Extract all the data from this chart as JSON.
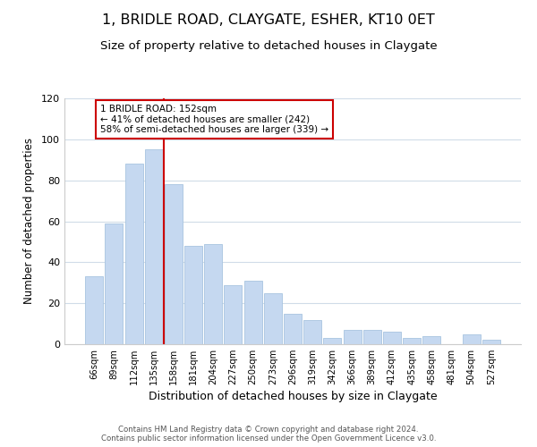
{
  "title": "1, BRIDLE ROAD, CLAYGATE, ESHER, KT10 0ET",
  "subtitle": "Size of property relative to detached houses in Claygate",
  "xlabel": "Distribution of detached houses by size in Claygate",
  "ylabel": "Number of detached properties",
  "categories": [
    "66sqm",
    "89sqm",
    "112sqm",
    "135sqm",
    "158sqm",
    "181sqm",
    "204sqm",
    "227sqm",
    "250sqm",
    "273sqm",
    "296sqm",
    "319sqm",
    "342sqm",
    "366sqm",
    "389sqm",
    "412sqm",
    "435sqm",
    "458sqm",
    "481sqm",
    "504sqm",
    "527sqm"
  ],
  "values": [
    33,
    59,
    88,
    95,
    78,
    48,
    49,
    29,
    31,
    25,
    15,
    12,
    3,
    7,
    7,
    6,
    3,
    4,
    0,
    5,
    2
  ],
  "bar_color": "#c5d8f0",
  "bar_edge_color": "#a8c4e0",
  "marker_label": "1 BRIDLE ROAD: 152sqm",
  "marker_line_color": "#cc0000",
  "annotation_line1": "← 41% of detached houses are smaller (242)",
  "annotation_line2": "58% of semi-detached houses are larger (339) →",
  "annotation_box_edge_color": "#cc0000",
  "ylim": [
    0,
    120
  ],
  "yticks": [
    0,
    20,
    40,
    60,
    80,
    100,
    120
  ],
  "footer_line1": "Contains HM Land Registry data © Crown copyright and database right 2024.",
  "footer_line2": "Contains public sector information licensed under the Open Government Licence v3.0.",
  "title_fontsize": 11.5,
  "subtitle_fontsize": 9.5,
  "xlabel_fontsize": 9,
  "ylabel_fontsize": 8.5,
  "background_color": "#ffffff",
  "grid_color": "#d0dce8"
}
